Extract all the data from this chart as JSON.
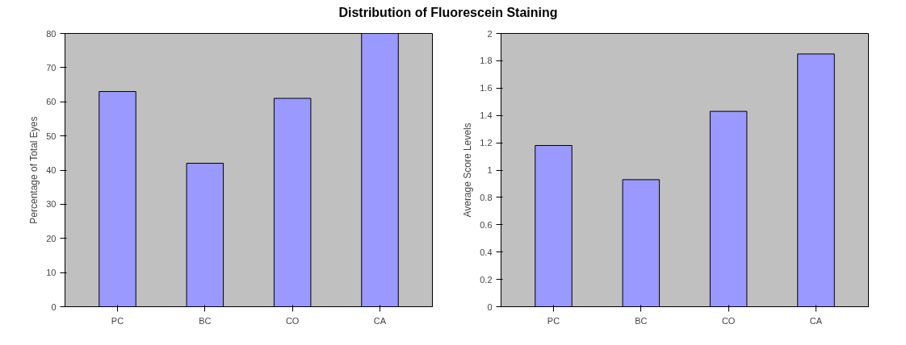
{
  "chart_data": [
    {
      "type": "bar",
      "title": "Distribution of Fluorescein Staining",
      "ylabel": "Percentage of Total Eyes",
      "categories": [
        "PC",
        "BC",
        "CO",
        "CA"
      ],
      "series": [
        {
          "color": "#9999ff",
          "values": [
            63,
            42,
            61,
            80
          ]
        }
      ],
      "ylim": [
        0,
        80
      ],
      "yticks": [
        0,
        10,
        20,
        30,
        40,
        50,
        60,
        70,
        80
      ],
      "grid": false
    },
    {
      "type": "bar",
      "ylabel": "Average Score Levels",
      "categories": [
        "PC",
        "BC",
        "CO",
        "CA"
      ],
      "series": [
        {
          "color": "#9999ff",
          "values": [
            1.18,
            0.93,
            1.43,
            1.85
          ]
        }
      ],
      "ylim": [
        0,
        2
      ],
      "yticks": [
        0,
        0.2,
        0.4,
        0.6,
        0.8,
        1,
        1.2,
        1.4,
        1.6,
        1.8,
        2
      ],
      "grid": false
    }
  ]
}
